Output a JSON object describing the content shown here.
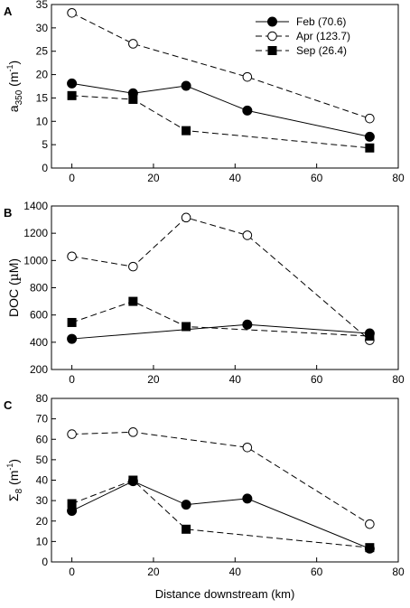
{
  "figure": {
    "xlabel": "Distance downstream (km)",
    "legend": {
      "placement": "top-right",
      "entries": [
        "Feb (70.6)",
        "Apr (123.7)",
        "Sep (26.4)"
      ]
    }
  },
  "chart_data": [
    {
      "type": "line",
      "panel": "A",
      "ylabel": "a350 (m-1)",
      "ylabel_parts": {
        "main": "a",
        "sub": "350",
        "paren_open": " (m",
        "sup": "-1",
        "paren_close": ")"
      },
      "xlim": [
        -5,
        80
      ],
      "ylim": [
        0,
        35
      ],
      "xticks": [
        0,
        20,
        40,
        60,
        80
      ],
      "yticks": [
        0,
        5,
        10,
        15,
        20,
        25,
        30,
        35
      ],
      "grid": false,
      "series": [
        {
          "name": "Feb (70.6)",
          "marker": "filled-circle",
          "dash": "solid",
          "x": [
            0,
            15,
            28,
            43,
            73
          ],
          "y": [
            18.1,
            16.0,
            17.6,
            12.3,
            6.7
          ]
        },
        {
          "name": "Apr (123.7)",
          "marker": "open-circle",
          "dash": "dashed",
          "x": [
            0,
            15,
            43,
            73
          ],
          "y": [
            33.2,
            26.6,
            19.5,
            10.6
          ]
        },
        {
          "name": "Sep (26.4)",
          "marker": "filled-square",
          "dash": "dashed",
          "x": [
            0,
            15,
            28,
            73
          ],
          "y": [
            15.5,
            14.7,
            8.0,
            4.3
          ]
        }
      ]
    },
    {
      "type": "line",
      "panel": "B",
      "ylabel": "DOC (µM)",
      "ylabel_parts": {
        "main": "DOC (",
        "mu": "µ",
        "rest": "M)"
      },
      "xlim": [
        -5,
        80
      ],
      "ylim": [
        200,
        1400
      ],
      "xticks": [
        0,
        20,
        40,
        60,
        80
      ],
      "yticks": [
        200,
        400,
        600,
        800,
        1000,
        1200,
        1400
      ],
      "grid": false,
      "series": [
        {
          "name": "Feb (70.6)",
          "marker": "filled-circle",
          "dash": "solid",
          "x": [
            0,
            43,
            73
          ],
          "y": [
            425,
            530,
            465
          ]
        },
        {
          "name": "Apr (123.7)",
          "marker": "open-circle",
          "dash": "dashed",
          "x": [
            0,
            15,
            28,
            43,
            73
          ],
          "y": [
            1030,
            955,
            1315,
            1185,
            415
          ]
        },
        {
          "name": "Sep (26.4)",
          "marker": "filled-square",
          "dash": "dashed",
          "x": [
            0,
            15,
            28,
            73
          ],
          "y": [
            545,
            700,
            515,
            445
          ]
        }
      ]
    },
    {
      "type": "line",
      "panel": "C",
      "ylabel": "Σ8 (m-1)",
      "ylabel_parts": {
        "main": "Σ",
        "sub": "8",
        "paren_open": " (m",
        "sup": "-1",
        "paren_close": ")"
      },
      "xlim": [
        -5,
        80
      ],
      "ylim": [
        0,
        80
      ],
      "xticks": [
        0,
        20,
        40,
        60,
        80
      ],
      "yticks": [
        0,
        10,
        20,
        30,
        40,
        50,
        60,
        70,
        80
      ],
      "grid": false,
      "series": [
        {
          "name": "Feb (70.6)",
          "marker": "filled-circle",
          "dash": "solid",
          "x": [
            0,
            15,
            28,
            43,
            73
          ],
          "y": [
            25,
            39.5,
            28,
            31,
            6.5
          ]
        },
        {
          "name": "Apr (123.7)",
          "marker": "open-circle",
          "dash": "dashed",
          "x": [
            0,
            15,
            43,
            73
          ],
          "y": [
            62.5,
            63.5,
            56,
            18.5
          ]
        },
        {
          "name": "Sep (26.4)",
          "marker": "filled-square",
          "dash": "dashed",
          "x": [
            0,
            15,
            28,
            73
          ],
          "y": [
            28.5,
            40,
            16,
            7
          ]
        }
      ]
    }
  ]
}
